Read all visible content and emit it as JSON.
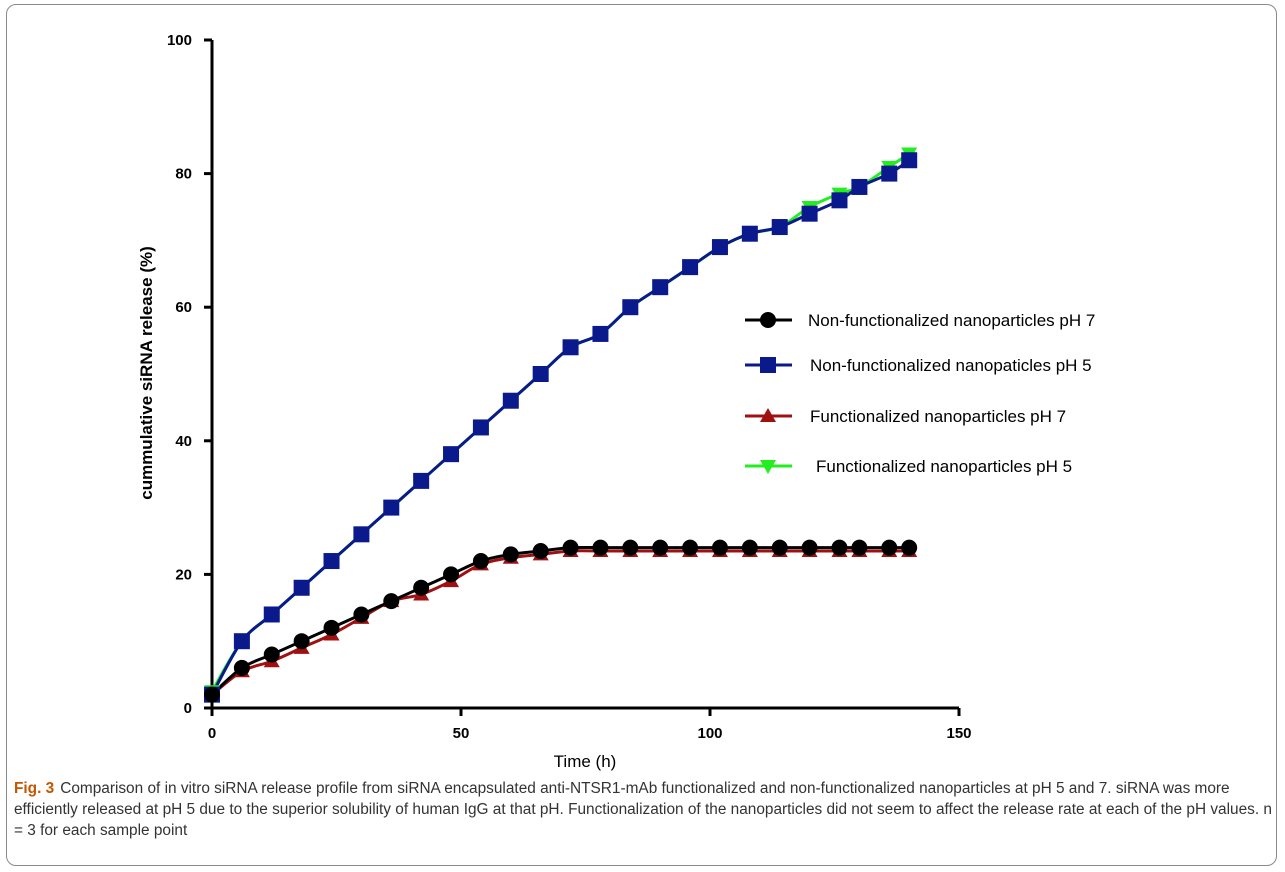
{
  "caption": {
    "label": "Fig. 3",
    "text": "Comparison of in vitro siRNA release profile from siRNA encapsulated anti-NTSR1-mAb functionalized and non-functionalized nanoparticles at pH 5 and 7. siRNA was more efficiently released at pH 5 due to the superior solubility of human IgG at that pH. Functionalization of the nanoparticles did not seem to affect the release rate at each of the pH values. n = 3 for each sample point"
  },
  "chart_data": {
    "type": "line",
    "title": "",
    "xlabel": "Time (h)",
    "ylabel": "cummulative siRNA release (%)",
    "xlim": [
      0,
      150
    ],
    "ylim": [
      0,
      100
    ],
    "xticks": [
      0,
      50,
      100,
      150
    ],
    "yticks": [
      0,
      20,
      40,
      60,
      80,
      100
    ],
    "grid": false,
    "legend_position": "right",
    "series": [
      {
        "name": "Non-functionalized nanoparticles pH 7",
        "color": "#000000",
        "marker": "circle",
        "x": [
          0,
          6,
          12,
          18,
          24,
          30,
          36,
          42,
          48,
          54,
          60,
          66,
          72,
          78,
          84,
          90,
          96,
          102,
          108,
          114,
          120,
          126,
          130,
          136,
          140
        ],
        "y": [
          2,
          6,
          8,
          10,
          12,
          14,
          16,
          18,
          20,
          22,
          23,
          23.5,
          24,
          24,
          24,
          24,
          24,
          24,
          24,
          24,
          24,
          24,
          24,
          24,
          24
        ]
      },
      {
        "name": "Non-functionalized nanopaticles pH 5",
        "color": "#0a1a8c",
        "marker": "square",
        "x": [
          0,
          6,
          12,
          18,
          24,
          30,
          36,
          42,
          48,
          54,
          60,
          66,
          72,
          78,
          84,
          90,
          96,
          102,
          108,
          114,
          120,
          126,
          130,
          136,
          140
        ],
        "y": [
          2,
          10,
          14,
          18,
          22,
          26,
          30,
          34,
          38,
          42,
          46,
          50,
          54,
          56,
          60,
          63,
          66,
          69,
          71,
          72,
          74,
          76,
          78,
          80,
          82
        ]
      },
      {
        "name": "Functionalized nanoparticles pH 7",
        "color": "#a01010",
        "marker": "triangle-up",
        "x": [
          0,
          6,
          12,
          18,
          24,
          30,
          36,
          42,
          48,
          54,
          60,
          66,
          72,
          78,
          84,
          90,
          96,
          102,
          108,
          114,
          120,
          126,
          130,
          136,
          140
        ],
        "y": [
          2,
          5.5,
          7,
          9,
          11,
          13.5,
          16,
          17,
          19,
          21.5,
          22.5,
          23,
          23.5,
          23.5,
          23.5,
          23.5,
          23.5,
          23.5,
          23.5,
          23.5,
          23.5,
          23.5,
          23.5,
          23.5,
          23.5
        ]
      },
      {
        "name": "Functionalized nanoparticles pH 5",
        "color": "#22ee22",
        "marker": "triangle-down",
        "x": [
          0,
          6,
          12,
          18,
          24,
          30,
          36,
          42,
          48,
          54,
          60,
          66,
          72,
          78,
          84,
          90,
          96,
          102,
          108,
          114,
          120,
          126,
          130,
          136,
          140
        ],
        "y": [
          2.5,
          10,
          14,
          18,
          22,
          26,
          30,
          34,
          38,
          42,
          46,
          50,
          54,
          56,
          60,
          63,
          66,
          69,
          71,
          72,
          75,
          77,
          78,
          81,
          83
        ]
      }
    ]
  }
}
